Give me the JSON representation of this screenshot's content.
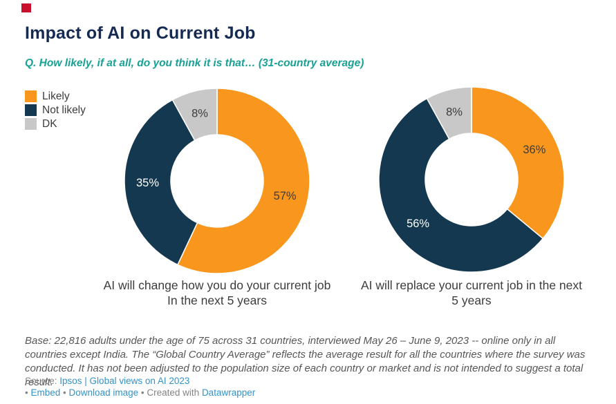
{
  "brand": {
    "badge_color": "#C8102E"
  },
  "header": {
    "title": "Impact of AI on Current Job",
    "subtitle": "Q. How likely, if at all, do you think it is that… (31-country average)"
  },
  "legend": {
    "items": [
      {
        "label": "Likely",
        "color": "#F8961D"
      },
      {
        "label": "Not likely",
        "color": "#14384F"
      },
      {
        "label": "DK",
        "color": "#C8C8C8"
      }
    ]
  },
  "chart_data": [
    {
      "type": "pie",
      "variant": "donut",
      "title": "AI will change how you do your current job In the next 5 years",
      "categories": [
        "Likely",
        "Not likely",
        "DK"
      ],
      "values": [
        57,
        35,
        8
      ],
      "unit": "%",
      "colors": [
        "#F8961D",
        "#14384F",
        "#C8C8C8"
      ],
      "label_colors": [
        "#3C3C3C",
        "#FFFFFF",
        "#3C3C3C"
      ],
      "start_angle": 0,
      "direction": "clockwise",
      "inner_radius_ratio": 0.5
    },
    {
      "type": "pie",
      "variant": "donut",
      "title": "AI will replace your current job in the next 5 years",
      "categories": [
        "Likely",
        "Not likely",
        "DK"
      ],
      "values": [
        36,
        56,
        8
      ],
      "unit": "%",
      "colors": [
        "#F8961D",
        "#14384F",
        "#C8C8C8"
      ],
      "label_colors": [
        "#3C3C3C",
        "#FFFFFF",
        "#3C3C3C"
      ],
      "start_angle": 0,
      "direction": "clockwise",
      "inner_radius_ratio": 0.5
    }
  ],
  "captions": {
    "left": [
      "AI will change how you do your current job",
      "In the next 5 years"
    ],
    "right": [
      "AI will replace your current job in the next",
      "5 years"
    ]
  },
  "note": "Base: 22,816 adults under the age of 75 across 31 countries, interviewed May 26 – June 9, 2023 -- online only in all countries except India. The “Global Country Average” reflects the average result for all the countries where the survey was conducted. It has not been adjusted to the population size of each country or market and is not intended to suggest a total result.",
  "footer": {
    "source_prefix": "Source: ",
    "source_link": "Ipsos | Global views on AI 2023",
    "bullet": "•",
    "embed_label": "Embed",
    "download_label": "Download image",
    "created_with": "Created with",
    "datawrapper_label": "Datawrapper"
  },
  "colors": {
    "title": "#152A52",
    "subtitle": "#18A194",
    "text": "#3C3C3C",
    "note": "#565656",
    "footer_text": "#848484",
    "link": "#3492C8"
  }
}
